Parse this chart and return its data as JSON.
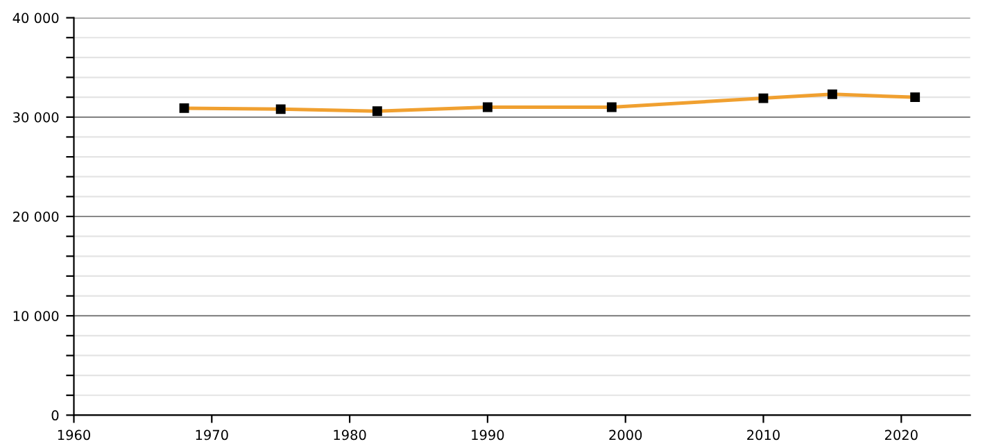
{
  "chart_data": {
    "type": "line",
    "x": [
      1968,
      1975,
      1982,
      1990,
      1999,
      2010,
      2015,
      2021
    ],
    "series": [
      {
        "color": "#f0a030",
        "values": [
          30900,
          30800,
          30600,
          31000,
          31000,
          31900,
          32300,
          32000
        ]
      }
    ],
    "marker": "square",
    "line_style": "solid",
    "grid": "y",
    "xlim": [
      1960,
      2025
    ],
    "xticks": [
      1960,
      1970,
      1980,
      1990,
      2000,
      2010,
      2020
    ],
    "ylim": [
      0,
      40000
    ],
    "yticks": [
      {
        "value": 0,
        "label": "0"
      },
      {
        "value": 2000,
        "label": null
      },
      {
        "value": 4000,
        "label": null
      },
      {
        "value": 6000,
        "label": null
      },
      {
        "value": 8000,
        "label": null
      },
      {
        "value": 10000,
        "label": "10 000"
      },
      {
        "value": 12000,
        "label": null
      },
      {
        "value": 14000,
        "label": null
      },
      {
        "value": 16000,
        "label": null
      },
      {
        "value": 18000,
        "label": null
      },
      {
        "value": 20000,
        "label": "20 000"
      },
      {
        "value": 22000,
        "label": null
      },
      {
        "value": 24000,
        "label": null
      },
      {
        "value": 26000,
        "label": null
      },
      {
        "value": 28000,
        "label": null
      },
      {
        "value": 30000,
        "label": "30 000"
      },
      {
        "value": 32000,
        "label": null
      },
      {
        "value": 34000,
        "label": null
      },
      {
        "value": 36000,
        "label": null
      },
      {
        "value": 38000,
        "label": null
      },
      {
        "value": 40000,
        "label": "40 000"
      }
    ]
  }
}
